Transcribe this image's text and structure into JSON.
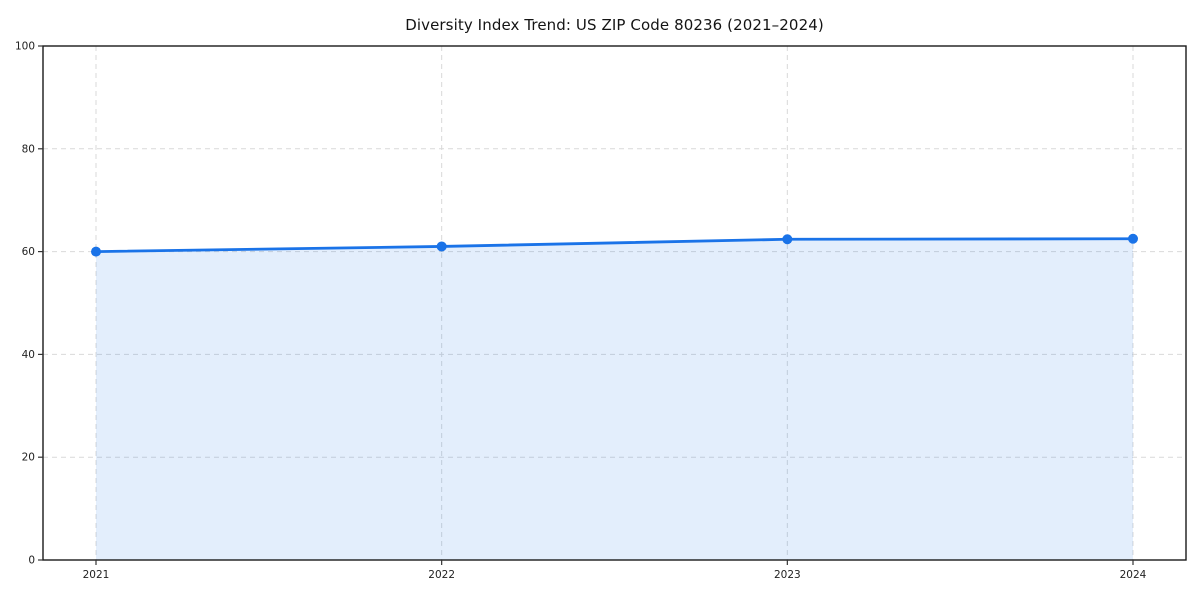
{
  "page": {
    "background": "#ffffff"
  },
  "chart_data": {
    "type": "area",
    "title": "Diversity Index Trend: US ZIP Code 80236 (2021–2024)",
    "categories": [
      "2021",
      "2022",
      "2023",
      "2024"
    ],
    "series": [
      {
        "name": "Diversity Index",
        "values": [
          60.0,
          61.0,
          62.4,
          62.5
        ]
      }
    ],
    "xlabel": "",
    "ylabel": "",
    "ylim": [
      0,
      100
    ],
    "yticks": [
      0,
      20,
      40,
      60,
      80,
      100
    ],
    "grid": "dashed-both-axes",
    "legend_position": "none",
    "line_color": "#1a73e8",
    "marker": "circle",
    "fill_color": "rgba(26,115,232,0.12)"
  }
}
